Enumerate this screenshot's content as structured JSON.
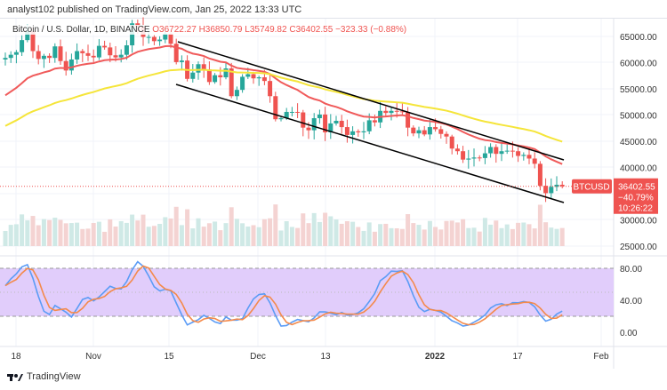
{
  "header": {
    "published": "analyst102 published on TradingView.com, Jan 25, 2022 13:33 UTC"
  },
  "legend": {
    "symbol": "Bitcoin / U.S. Dollar, 1D, BINANCE",
    "open": "O36722.27",
    "high": "H36850.79",
    "low": "L35749.82",
    "close": "C36402.55",
    "change": "−323.33 (−0.88%)"
  },
  "price_tag": {
    "ticker": "BTCUSD",
    "price": "36402.55",
    "pct": "−40.79%",
    "countdown": "10:26:22"
  },
  "footer": {
    "brand": "TradingView"
  },
  "colors": {
    "up": "#26a69a",
    "down": "#ef5350",
    "ma_fast": "#f05a5a",
    "ma_slow": "#f5e53a",
    "stoch_k": "#5b9cf6",
    "stoch_d": "#f48a4b",
    "stoch_band": "#e1cdfb"
  },
  "chart_data": {
    "type": "candlestick",
    "first_date": "2021-10-16",
    "closes": [
      60.9,
      61.5,
      62.0,
      64.3,
      66.0,
      62.2,
      60.7,
      61.3,
      60.9,
      63.1,
      60.3,
      58.5,
      60.6,
      62.2,
      61.8,
      61.3,
      61.0,
      63.2,
      62.9,
      61.4,
      61.0,
      61.5,
      63.3,
      67.5,
      66.9,
      64.9,
      64.9,
      64.1,
      64.4,
      65.5,
      63.6,
      60.1,
      60.4,
      56.9,
      58.1,
      59.7,
      58.7,
      56.3,
      57.6,
      57.2,
      58.9,
      53.6,
      54.8,
      57.3,
      57.8,
      57.0,
      57.2,
      56.5,
      53.6,
      49.2,
      49.4,
      50.6,
      50.6,
      50.5,
      47.6,
      47.1,
      49.4,
      50.1,
      46.7,
      48.4,
      48.9,
      47.7,
      46.2,
      46.9,
      46.7,
      46.9,
      49.0,
      48.6,
      50.8,
      50.4,
      50.8,
      50.7,
      50.6,
      47.6,
      46.5,
      47.1,
      46.3,
      47.7,
      47.3,
      46.4,
      45.9,
      43.6,
      43.1,
      41.5,
      41.7,
      41.9,
      41.8,
      42.7,
      43.9,
      42.6,
      43.1,
      43.2,
      43.1,
      42.2,
      42.4,
      41.7,
      40.7,
      36.5,
      35.1,
      36.3,
      36.7,
      36.4
    ],
    "close_units": "thousand USD",
    "y_ticks": [
      "65000.00",
      "60000.00",
      "55000.00",
      "50000.00",
      "45000.00",
      "40000.00",
      "30000.00",
      "25000.00"
    ],
    "x_ticks": [
      "18",
      "Nov",
      "15",
      "Dec",
      "13",
      "2022",
      "17",
      "Feb"
    ],
    "stoch_ticks": [
      "80.00",
      "40.00",
      "0.00"
    ],
    "ylim": [
      25000,
      67000
    ],
    "stoch_lim": [
      0,
      100
    ],
    "indicators": [
      "MA fast (red)",
      "MA slow (yellow)",
      "Stochastic RSI"
    ]
  }
}
